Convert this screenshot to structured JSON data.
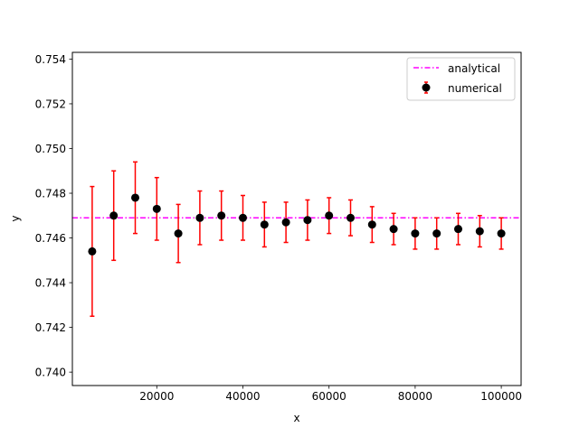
{
  "chart_data": {
    "type": "scatter",
    "title": "",
    "xlabel": "x",
    "ylabel": "y",
    "xlim": [
      400,
      104600
    ],
    "ylim": [
      0.7394,
      0.7543
    ],
    "grid": false,
    "legend_position": "top-right",
    "x_ticks": [
      {
        "value": 20000,
        "label": "20000"
      },
      {
        "value": 40000,
        "label": "40000"
      },
      {
        "value": 60000,
        "label": "60000"
      },
      {
        "value": 80000,
        "label": "80000"
      },
      {
        "value": 100000,
        "label": "100000"
      }
    ],
    "y_ticks": [
      {
        "value": 0.74,
        "label": "0.740"
      },
      {
        "value": 0.742,
        "label": "0.742"
      },
      {
        "value": 0.744,
        "label": "0.744"
      },
      {
        "value": 0.746,
        "label": "0.746"
      },
      {
        "value": 0.748,
        "label": "0.748"
      },
      {
        "value": 0.75,
        "label": "0.750"
      },
      {
        "value": 0.752,
        "label": "0.752"
      },
      {
        "value": 0.754,
        "label": "0.754"
      }
    ],
    "analytical": {
      "name": "analytical",
      "value": 0.7469,
      "color": "#ff00ff",
      "style": "dash-dot"
    },
    "numerical": {
      "name": "numerical",
      "marker_color": "#000000",
      "errorbar_color": "#ff0000",
      "points": [
        {
          "x": 5000,
          "y": 0.7454,
          "err": 0.0029
        },
        {
          "x": 10000,
          "y": 0.747,
          "err": 0.002
        },
        {
          "x": 15000,
          "y": 0.7478,
          "err": 0.0016
        },
        {
          "x": 20000,
          "y": 0.7473,
          "err": 0.0014
        },
        {
          "x": 25000,
          "y": 0.7462,
          "err": 0.0013
        },
        {
          "x": 30000,
          "y": 0.7469,
          "err": 0.0012
        },
        {
          "x": 35000,
          "y": 0.747,
          "err": 0.0011
        },
        {
          "x": 40000,
          "y": 0.7469,
          "err": 0.001
        },
        {
          "x": 45000,
          "y": 0.7466,
          "err": 0.001
        },
        {
          "x": 50000,
          "y": 0.7467,
          "err": 0.0009
        },
        {
          "x": 55000,
          "y": 0.7468,
          "err": 0.0009
        },
        {
          "x": 60000,
          "y": 0.747,
          "err": 0.0008
        },
        {
          "x": 65000,
          "y": 0.7469,
          "err": 0.0008
        },
        {
          "x": 70000,
          "y": 0.7466,
          "err": 0.0008
        },
        {
          "x": 75000,
          "y": 0.7464,
          "err": 0.0007
        },
        {
          "x": 80000,
          "y": 0.7462,
          "err": 0.0007
        },
        {
          "x": 85000,
          "y": 0.7462,
          "err": 0.0007
        },
        {
          "x": 90000,
          "y": 0.7464,
          "err": 0.0007
        },
        {
          "x": 95000,
          "y": 0.7463,
          "err": 0.0007
        },
        {
          "x": 100000,
          "y": 0.7462,
          "err": 0.0007
        }
      ]
    }
  }
}
